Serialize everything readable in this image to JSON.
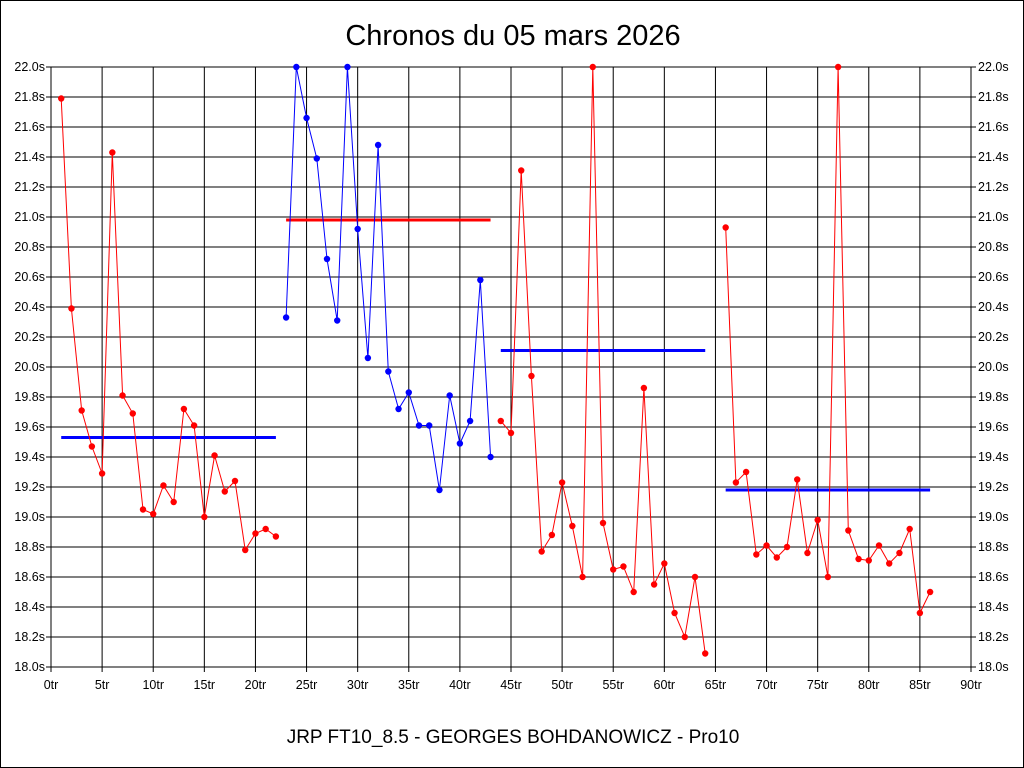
{
  "chart_data": {
    "type": "line",
    "title": "Chronos du 05 mars 2026",
    "footer": "JRP FT10_8.5 - GEORGES BOHDANOWICZ - Pro10",
    "xlabel": "",
    "ylabel": "",
    "xlim": [
      0,
      90
    ],
    "ylim": [
      18.0,
      22.0
    ],
    "x_ticks": [
      0,
      5,
      10,
      15,
      20,
      25,
      30,
      35,
      40,
      45,
      50,
      55,
      60,
      65,
      70,
      75,
      80,
      85,
      90
    ],
    "x_tick_suffix": "tr",
    "y_ticks": [
      18.0,
      18.2,
      18.4,
      18.6,
      18.8,
      19.0,
      19.2,
      19.4,
      19.6,
      19.8,
      20.0,
      20.2,
      20.4,
      20.6,
      20.8,
      21.0,
      21.2,
      21.4,
      21.6,
      21.8,
      22.0
    ],
    "y_tick_suffix": "s",
    "grid": true,
    "colors": {
      "red": "#ff0000",
      "blue": "#0000ff",
      "avg_red": "#ff0000",
      "avg_blue": "#0000ff"
    },
    "series": [
      {
        "color": "red",
        "x": [
          1,
          2,
          3,
          4,
          5,
          6,
          7,
          8,
          9,
          10,
          11,
          12,
          13,
          14,
          15,
          16,
          17,
          18,
          19,
          20,
          21,
          22
        ],
        "values": [
          21.79,
          20.39,
          19.71,
          19.47,
          19.29,
          21.43,
          19.81,
          19.69,
          19.05,
          19.02,
          19.21,
          19.1,
          19.72,
          19.61,
          19.0,
          19.41,
          19.17,
          19.24,
          18.78,
          18.89,
          18.92,
          18.87
        ]
      },
      {
        "color": "blue",
        "x": [
          23,
          24,
          25,
          26,
          27,
          28,
          29,
          30,
          31,
          32,
          33,
          34,
          35,
          36,
          37,
          38,
          39,
          40,
          41,
          42,
          43
        ],
        "values": [
          20.33,
          22.0,
          21.66,
          21.39,
          20.72,
          20.31,
          22.0,
          20.92,
          20.06,
          21.48,
          19.97,
          19.72,
          19.83,
          19.61,
          19.61,
          19.18,
          19.81,
          19.49,
          19.64,
          20.58,
          19.4
        ]
      },
      {
        "color": "red",
        "x": [
          44,
          45,
          46,
          47,
          48,
          49,
          50,
          51,
          52,
          53,
          54,
          55,
          56,
          57,
          58,
          59,
          60,
          61,
          62,
          63,
          64
        ],
        "values": [
          19.64,
          19.56,
          21.31,
          19.94,
          18.77,
          18.88,
          19.23,
          18.94,
          18.6,
          22.0,
          18.96,
          18.65,
          18.67,
          18.5,
          19.86,
          18.55,
          18.69,
          18.36,
          18.2,
          18.6,
          18.09
        ]
      },
      {
        "color": "red",
        "x": [
          66,
          67,
          68,
          69,
          70,
          71,
          72,
          73,
          74,
          75,
          76,
          77,
          78,
          79,
          80,
          81,
          82,
          83,
          84,
          85,
          86
        ],
        "values": [
          20.93,
          19.23,
          19.3,
          18.75,
          18.81,
          18.73,
          18.8,
          19.25,
          18.76,
          18.98,
          18.6,
          22.0,
          18.91,
          18.72,
          18.71,
          18.81,
          18.69,
          18.76,
          18.92,
          18.36,
          18.5
        ]
      }
    ],
    "averages": [
      {
        "color": "blue",
        "x_range": [
          1,
          22
        ],
        "value": 19.53
      },
      {
        "color": "red",
        "x_range": [
          23,
          43
        ],
        "value": 20.98
      },
      {
        "color": "blue",
        "x_range": [
          44,
          64
        ],
        "value": 20.11
      },
      {
        "color": "blue",
        "x_range": [
          66,
          86
        ],
        "value": 19.18
      }
    ]
  }
}
